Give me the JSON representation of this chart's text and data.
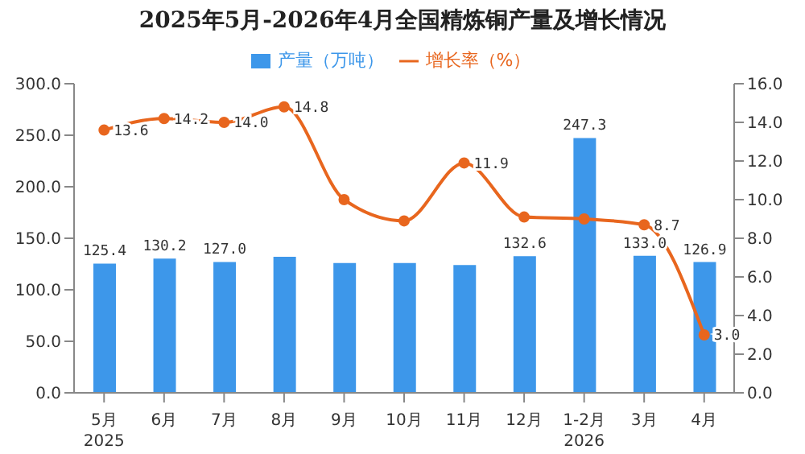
{
  "chart_data": {
    "type": "bar",
    "title": "2025年5月-2026年4月全国精炼铜产量及增长情况",
    "categories": [
      "5月\n2025",
      "6月",
      "7月",
      "8月",
      "9月",
      "10月",
      "11月",
      "12月",
      "1-2月\n2026",
      "3月",
      "4月"
    ],
    "series": [
      {
        "name": "产量（万吨）",
        "color": "#3d97ea",
        "values": [
          125.4,
          130.2,
          127.0,
          132.0,
          126.0,
          126.0,
          124.0,
          132.6,
          247.3,
          133.0,
          126.9
        ],
        "value_labels": [
          "125.4",
          "130.2",
          "127.0",
          null,
          null,
          null,
          null,
          "132.6",
          "247.3",
          "133.0",
          "126.9"
        ]
      },
      {
        "name": "增长率（%）",
        "type": "line",
        "axis": "y2",
        "color": "#e8661e",
        "values": [
          13.6,
          14.2,
          14.0,
          14.8,
          10.0,
          8.9,
          11.9,
          9.1,
          9.0,
          8.7,
          3.0
        ],
        "value_labels": [
          "13.6",
          "14.2",
          "14.0",
          "14.8",
          null,
          null,
          "11.9",
          null,
          null,
          "8.7",
          "3.0"
        ]
      }
    ],
    "ylim": [
      0,
      300
    ],
    "yticks": [
      {
        "value": 0,
        "label": "0.0"
      },
      {
        "value": 50,
        "label": "50.0"
      },
      {
        "value": 100,
        "label": "100.0"
      },
      {
        "value": 150,
        "label": "150.0"
      },
      {
        "value": 200,
        "label": "200.0"
      },
      {
        "value": 250,
        "label": "250.0"
      },
      {
        "value": 300,
        "label": "300.0"
      }
    ],
    "y2lim": [
      0,
      16
    ],
    "y2ticks": [
      {
        "value": 0,
        "label": "0.0"
      },
      {
        "value": 2,
        "label": "2.0"
      },
      {
        "value": 4,
        "label": "4.0"
      },
      {
        "value": 6,
        "label": "6.0"
      },
      {
        "value": 8,
        "label": "8.0"
      },
      {
        "value": 10,
        "label": "10.0"
      },
      {
        "value": 12,
        "label": "12.0"
      },
      {
        "value": 14,
        "label": "14.0"
      },
      {
        "value": 16,
        "label": "16.0"
      }
    ],
    "legend": "top",
    "marker": "circle",
    "grid": false
  }
}
